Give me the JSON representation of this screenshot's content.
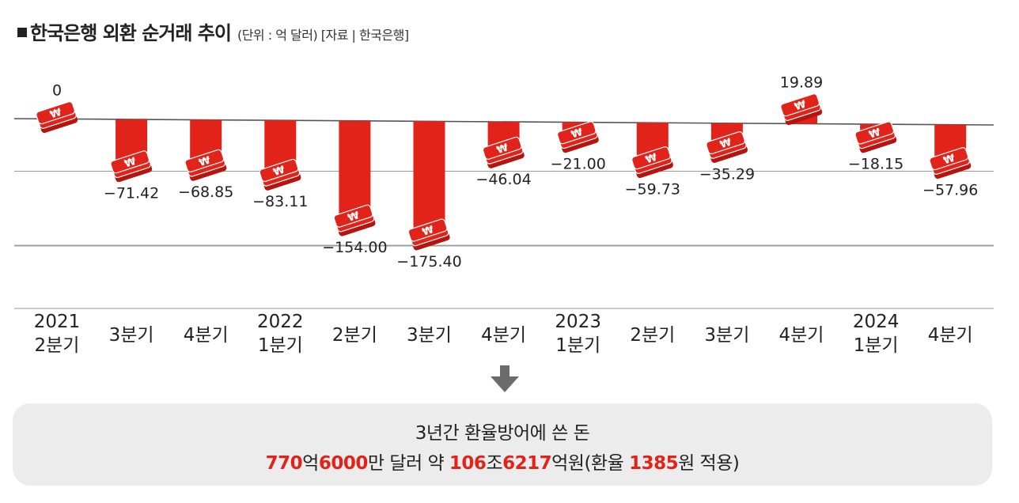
{
  "title": {
    "main": "한국은행 외환 순거래 추이",
    "sub": "(단위 : 억 달러)  [자료 | 한국은행]"
  },
  "chart_data": {
    "type": "bar",
    "categories": [
      [
        "2021",
        "2분기"
      ],
      [
        "3분기"
      ],
      [
        "4분기"
      ],
      [
        "2022",
        "1분기"
      ],
      [
        "2분기"
      ],
      [
        "3분기"
      ],
      [
        "4분기"
      ],
      [
        "2023",
        "1분기"
      ],
      [
        "2분기"
      ],
      [
        "3분기"
      ],
      [
        "4분기"
      ],
      [
        "2024",
        "1분기"
      ],
      [
        "4분기"
      ]
    ],
    "values": [
      0,
      -71.42,
      -68.85,
      -83.11,
      -154.0,
      -175.4,
      -46.04,
      -21.0,
      -59.73,
      -35.29,
      19.89,
      -18.15,
      -57.96
    ],
    "value_labels": [
      "0",
      "−71.42",
      "−68.85",
      "−83.11",
      "−154.00",
      "−175.40",
      "−46.04",
      "−21.00",
      "−59.73",
      "−35.29",
      "19.89",
      "−18.15",
      "−57.96"
    ],
    "unit": "억 달러",
    "bar_color": "#e2231a",
    "grid": true,
    "icon": "won-money-stack-icon"
  },
  "summary": {
    "line1": "3년간 환율방어에 쓴 돈",
    "line2": [
      {
        "text": "770",
        "red": true
      },
      {
        "text": "억",
        "red": false
      },
      {
        "text": "6000",
        "red": true
      },
      {
        "text": "만 달러 약 ",
        "red": false
      },
      {
        "text": "106",
        "red": true
      },
      {
        "text": "조",
        "red": false
      },
      {
        "text": "6217",
        "red": true
      },
      {
        "text": "억원(환율 ",
        "red": false
      },
      {
        "text": "1385",
        "red": true
      },
      {
        "text": "원 적용)",
        "red": false
      }
    ]
  },
  "colors": {
    "accent": "#e2231a",
    "summary_bg": "#ececec",
    "arrow": "#6b6b6b"
  }
}
